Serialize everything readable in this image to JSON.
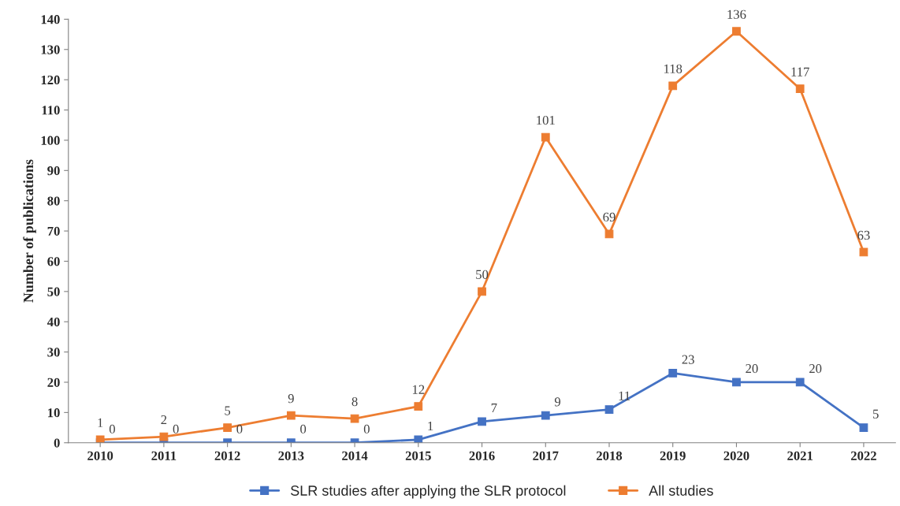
{
  "chart_data": {
    "type": "line",
    "ylabel": "Number of publications",
    "categories": [
      "2010",
      "2011",
      "2012",
      "2013",
      "2014",
      "2015",
      "2016",
      "2017",
      "2018",
      "2019",
      "2020",
      "2021",
      "2022"
    ],
    "series": [
      {
        "name": "SLR studies after applying the SLR protocol",
        "color": "#4472c4",
        "values": [
          0,
          0,
          0,
          0,
          0,
          1,
          7,
          9,
          11,
          23,
          20,
          20,
          5
        ]
      },
      {
        "name": "All studies",
        "color": "#ed7d31",
        "values": [
          1,
          2,
          5,
          9,
          8,
          12,
          50,
          101,
          69,
          118,
          136,
          117,
          63
        ]
      }
    ],
    "ylim": [
      0,
      140
    ],
    "yticks": [
      0,
      10,
      20,
      30,
      40,
      50,
      60,
      70,
      80,
      90,
      100,
      110,
      120,
      130,
      140
    ],
    "marker": "square",
    "line_style": "solid",
    "data_labels": true,
    "legend": "bottom",
    "grid": false
  }
}
